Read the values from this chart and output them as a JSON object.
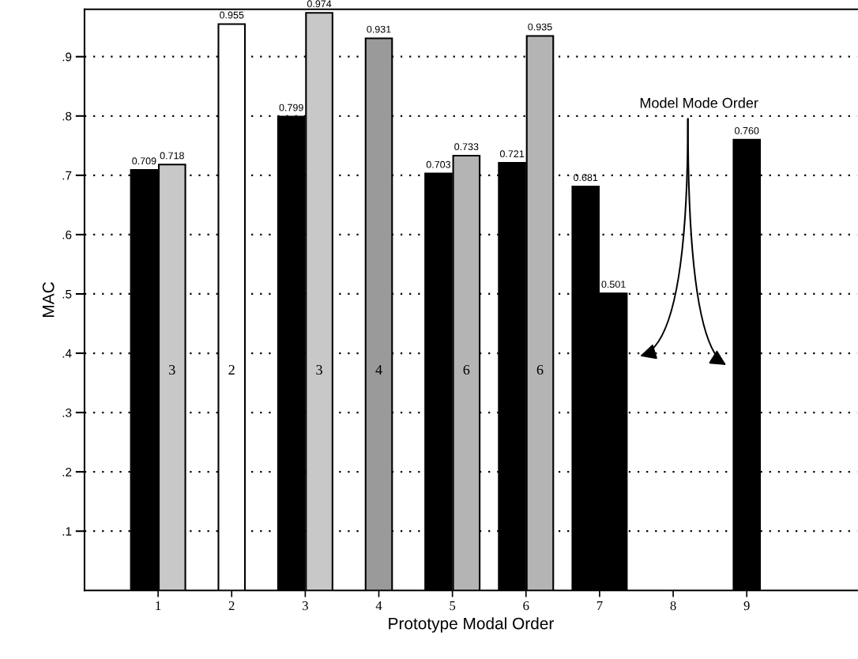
{
  "chart_data": {
    "type": "bar",
    "xlabel": "Prototype Modal Order",
    "ylabel": "MAC",
    "series": [
      {
        "x": [
          0.81,
          1.19,
          2,
          2.81,
          3.19,
          4,
          4.81,
          5.19,
          5.81,
          6.19,
          6.81,
          7.19,
          9
        ],
        "values": [
          0.709,
          0.718,
          0.955,
          0.799,
          0.974,
          0.931,
          0.703,
          0.733,
          0.721,
          0.935,
          0.681,
          0.501,
          0.76
        ],
        "colors": [
          "#000000",
          "#c8c8c8",
          "#ffffff",
          "#000000",
          "#c8c8c8",
          "#9a9a9a",
          "#000000",
          "#b4b4b4",
          "#000000",
          "#b4b4b4",
          "#000000",
          "#000000",
          "#000000"
        ],
        "value_labels": [
          "0.709",
          "0.718",
          "0.955",
          "0.799",
          "0.974",
          "0.931",
          "0.703",
          "0.733",
          "0.721",
          "0.935",
          "0.681",
          "0.501",
          "0.760"
        ]
      }
    ],
    "annotations": [
      "3",
      "2",
      "3",
      "4",
      "6",
      "6",
      "Model Mode Order"
    ],
    "xlim": [
      0,
      10.5
    ],
    "xticks": [
      1,
      2,
      3,
      4,
      5,
      6,
      7,
      8,
      9
    ],
    "ylim": [
      0,
      0.98
    ],
    "yticks": [
      {
        "value": 0.1,
        "label": ".1"
      },
      {
        "value": 0.2,
        "label": ".2"
      },
      {
        "value": 0.3,
        "label": ".3"
      },
      {
        "value": 0.4,
        "label": ".4"
      },
      {
        "value": 0.5,
        "label": ".5"
      },
      {
        "value": 0.6,
        "label": ".6"
      },
      {
        "value": 0.7,
        "label": ".7"
      },
      {
        "value": 0.8,
        "label": ".8"
      },
      {
        "value": 0.9,
        "label": ".9"
      }
    ],
    "grid": "y"
  }
}
